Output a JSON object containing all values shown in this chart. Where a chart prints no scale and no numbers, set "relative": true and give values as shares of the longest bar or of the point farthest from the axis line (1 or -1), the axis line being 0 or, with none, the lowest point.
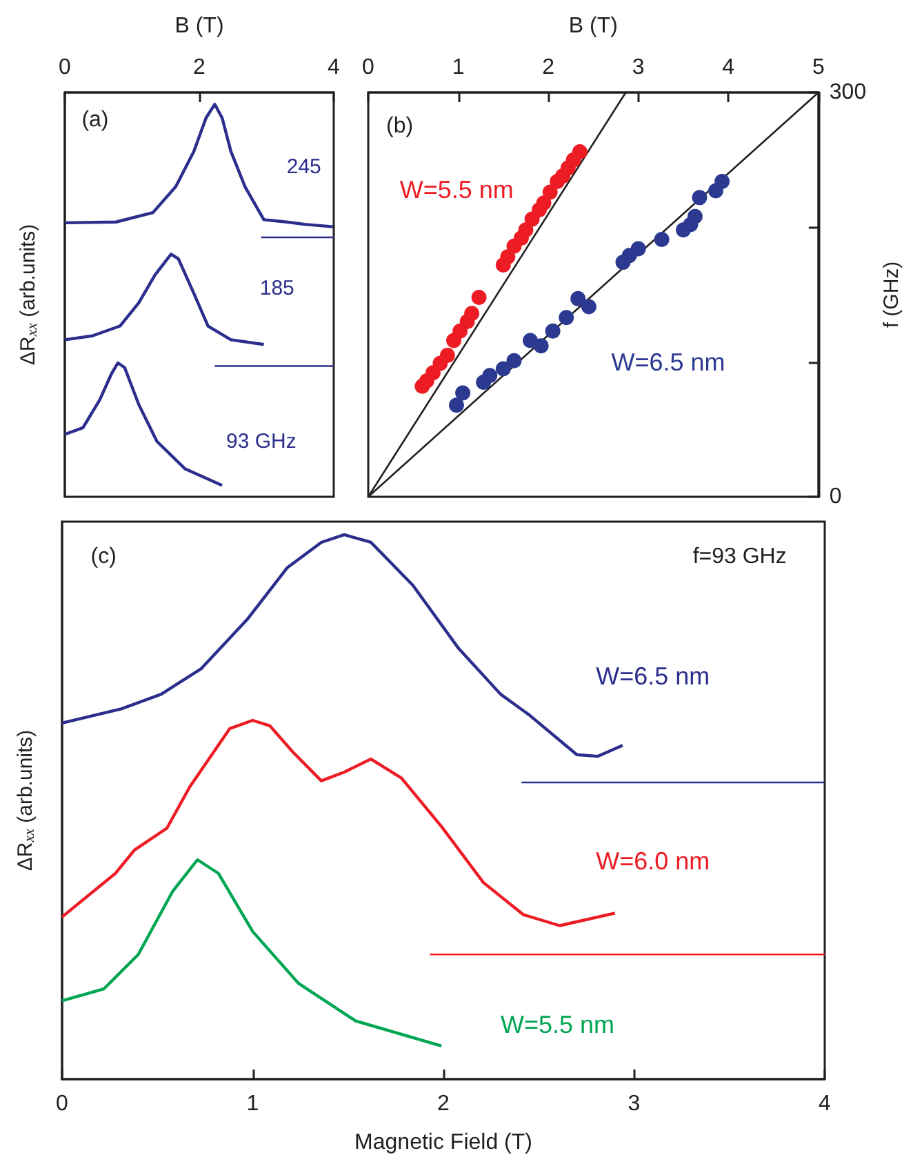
{
  "chart_data": [
    {
      "type": "line",
      "relative": true,
      "xlabel": "B (T)",
      "ylabel": "ΔR$_{xx}$ (arb.units)",
      "xlim": [
        0,
        4
      ],
      "xticks": [
        0,
        2,
        4
      ],
      "tick_labels": "x",
      "annotations": [
        "(a)"
      ],
      "series": [
        {
          "name": "245",
          "color": "#2b2e8c",
          "x": [
            0,
            0.76,
            1.31,
            1.65,
            1.92,
            2.1,
            2.23,
            2.34,
            2.47,
            2.68,
            2.96,
            3.3,
            3.57,
            3.99
          ],
          "values": [
            0.698,
            0.7,
            0.724,
            0.79,
            0.88,
            0.965,
            1.0,
            0.965,
            0.88,
            0.79,
            0.706,
            0.7,
            0.694,
            0.688
          ]
        },
        {
          "color": "#2b2e8c",
          "x": [
            2.92,
            4
          ],
          "values": [
            0.661,
            0.661
          ]
        },
        {
          "name": "185",
          "color": "#2b2e8c",
          "x": [
            0,
            0.41,
            0.82,
            1.1,
            1.34,
            1.58,
            1.69,
            1.92,
            2.13,
            2.47,
            2.96
          ],
          "values": [
            0.4,
            0.41,
            0.435,
            0.494,
            0.565,
            0.618,
            0.606,
            0.518,
            0.435,
            0.4,
            0.388
          ]
        },
        {
          "color": "#2b2e8c",
          "x": [
            2.23,
            4
          ],
          "values": [
            0.333,
            0.333
          ]
        },
        {
          "name": "93 GHz",
          "color": "#2b2e8c",
          "x": [
            0,
            0.27,
            0.52,
            0.69,
            0.79,
            0.89,
            1.1,
            1.37,
            1.79,
            2.34
          ],
          "values": [
            0.159,
            0.176,
            0.247,
            0.312,
            0.341,
            0.329,
            0.235,
            0.141,
            0.071,
            0.029
          ]
        }
      ]
    },
    {
      "type": "scatter",
      "xlabel": "B (T)",
      "ylabel": "f (GHz)",
      "xlim": [
        0,
        5
      ],
      "xticks": [
        0,
        1,
        2,
        3,
        4,
        5
      ],
      "ylim": [
        0,
        300
      ],
      "yticks": [
        0,
        {
          "value": 100,
          "label": null
        },
        {
          "value": 200,
          "label": null
        },
        300
      ],
      "annotations": [
        "(b)"
      ],
      "series": [
        {
          "name": "W=5.5 nm",
          "marker": "circle",
          "color": "#ed1c24",
          "x": [
            0.6,
            0.65,
            0.72,
            0.8,
            0.88,
            0.95,
            1.02,
            1.1,
            1.15,
            1.23,
            1.5,
            1.55,
            1.62,
            1.7,
            1.75,
            1.82,
            1.9,
            1.95,
            2.02,
            2.1,
            2.16,
            2.22,
            2.28,
            2.35
          ],
          "values": [
            82,
            86,
            92,
            99,
            105,
            116,
            123,
            130,
            136,
            148,
            172,
            178,
            186,
            192,
            198,
            206,
            213,
            218,
            226,
            234,
            238,
            244,
            250,
            256
          ]
        },
        {
          "name": "W=6.5 nm",
          "marker": "circle",
          "color": "#2b3990",
          "x": [
            0.98,
            1.05,
            1.28,
            1.35,
            1.5,
            1.62,
            1.8,
            1.92,
            2.05,
            2.2,
            2.33,
            2.45,
            2.83,
            2.9,
            3.0,
            3.26,
            3.5,
            3.58,
            3.63,
            3.68,
            3.86,
            3.93
          ],
          "values": [
            68,
            77,
            85,
            90,
            95,
            101,
            116,
            112,
            123,
            133,
            147,
            141,
            174,
            179,
            184,
            191,
            198,
            202,
            208,
            222,
            227,
            234
          ]
        },
        {
          "type": "line",
          "color": "#231f20",
          "x": [
            0,
            2.86
          ],
          "values": [
            0,
            300
          ]
        },
        {
          "type": "line",
          "color": "#231f20",
          "x": [
            0,
            5
          ],
          "values": [
            0,
            300
          ]
        }
      ]
    },
    {
      "type": "line",
      "relative": true,
      "xlabel": "Magnetic Field (T)",
      "ylabel": "ΔR$_{xx}$ (arb.units)",
      "xlim": [
        0,
        4
      ],
      "xticks": [
        0,
        1,
        2,
        3,
        4
      ],
      "tick_labels": "x",
      "annotations": [
        "(c)",
        "f=93 GHz"
      ],
      "series": [
        {
          "name": "W=6.5 nm",
          "color": "#2b2e8c",
          "x": [
            0,
            0.31,
            0.52,
            0.73,
            0.97,
            1.18,
            1.36,
            1.48,
            1.62,
            1.84,
            2.08,
            2.3,
            2.45,
            2.7,
            2.81,
            2.94
          ],
          "values": [
            0.654,
            0.68,
            0.707,
            0.754,
            0.844,
            0.939,
            0.986,
            1.0,
            0.986,
            0.907,
            0.791,
            0.707,
            0.669,
            0.596,
            0.593,
            0.613
          ]
        },
        {
          "color": "#2b2e8c",
          "x": [
            2.41,
            4
          ],
          "values": [
            0.545,
            0.545
          ]
        },
        {
          "name": "W=6.0 nm",
          "color": "#ed1c24",
          "x": [
            0,
            0.28,
            0.38,
            0.55,
            0.67,
            0.88,
            1.0,
            1.09,
            1.21,
            1.36,
            1.48,
            1.62,
            1.78,
            1.99,
            2.21,
            2.42,
            2.61,
            2.9
          ],
          "values": [
            0.298,
            0.378,
            0.421,
            0.461,
            0.537,
            0.644,
            0.659,
            0.649,
            0.601,
            0.548,
            0.564,
            0.588,
            0.553,
            0.464,
            0.361,
            0.302,
            0.282,
            0.305
          ]
        },
        {
          "color": "#ed1c24",
          "x": [
            1.93,
            4
          ],
          "values": [
            0.229,
            0.229
          ]
        },
        {
          "name": "W=5.5 nm",
          "color": "#00a651",
          "x": [
            0,
            0.22,
            0.4,
            0.58,
            0.71,
            0.82,
            1.0,
            1.24,
            1.54,
            1.99
          ],
          "values": [
            0.144,
            0.166,
            0.229,
            0.345,
            0.403,
            0.378,
            0.271,
            0.176,
            0.107,
            0.061
          ]
        }
      ]
    }
  ]
}
